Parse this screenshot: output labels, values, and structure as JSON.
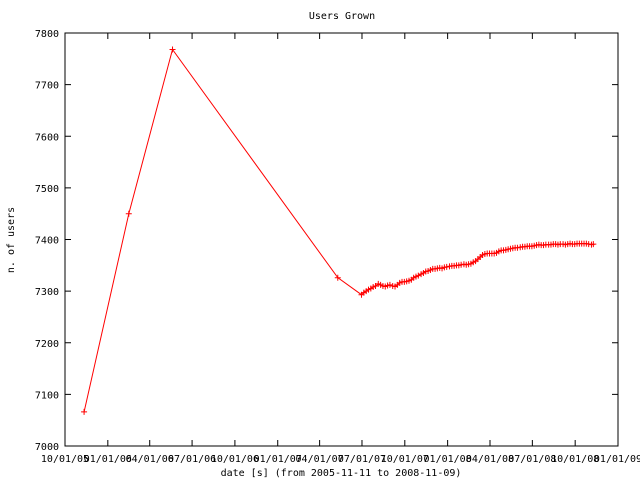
{
  "chart_data": {
    "type": "line",
    "title": "Users Grown",
    "xlabel": "date [s] (from 2005-11-11 to 2008-11-09)",
    "ylabel": "n. of users",
    "ylim": [
      7000,
      7800
    ],
    "y_ticks": [
      7000,
      7100,
      7200,
      7300,
      7400,
      7500,
      7600,
      7700,
      7800
    ],
    "x_tick_labels": [
      "10/01/05",
      "01/01/06",
      "04/01/06",
      "07/01/06",
      "10/01/06",
      "01/01/07",
      "04/01/07",
      "07/01/07",
      "10/01/07",
      "01/01/08",
      "04/01/08",
      "07/01/08",
      "10/01/08",
      "01/01/09"
    ],
    "grid": false,
    "legend": "none",
    "line_color": "#ff0000",
    "series": [
      {
        "name": "",
        "x": [
          "2005-11-11",
          "2006-02-15",
          "2006-05-20",
          "2007-05-10",
          "2007-06-30",
          "2007-07-05",
          "2007-07-10",
          "2007-07-15",
          "2007-07-20",
          "2007-07-25",
          "2007-07-30",
          "2007-08-05",
          "2007-08-10",
          "2007-08-15",
          "2007-08-20",
          "2007-08-25",
          "2007-08-30",
          "2007-09-05",
          "2007-09-10",
          "2007-09-15",
          "2007-09-20",
          "2007-09-25",
          "2007-09-30",
          "2007-10-05",
          "2007-10-10",
          "2007-10-15",
          "2007-10-20",
          "2007-10-25",
          "2007-10-30",
          "2007-11-05",
          "2007-11-10",
          "2007-11-15",
          "2007-11-20",
          "2007-11-25",
          "2007-11-30",
          "2007-12-05",
          "2007-12-10",
          "2007-12-15",
          "2007-12-20",
          "2007-12-25",
          "2007-12-30",
          "2008-01-05",
          "2008-01-10",
          "2008-01-15",
          "2008-01-20",
          "2008-01-25",
          "2008-01-30",
          "2008-02-05",
          "2008-02-10",
          "2008-02-15",
          "2008-02-20",
          "2008-02-25",
          "2008-03-01",
          "2008-03-06",
          "2008-03-11",
          "2008-03-16",
          "2008-03-21",
          "2008-03-26",
          "2008-03-31",
          "2008-04-05",
          "2008-04-10",
          "2008-04-15",
          "2008-04-20",
          "2008-04-25",
          "2008-04-30",
          "2008-05-05",
          "2008-05-10",
          "2008-05-15",
          "2008-05-20",
          "2008-05-25",
          "2008-05-30",
          "2008-06-05",
          "2008-06-10",
          "2008-06-15",
          "2008-06-20",
          "2008-06-25",
          "2008-06-30",
          "2008-07-05",
          "2008-07-10",
          "2008-07-15",
          "2008-07-20",
          "2008-07-25",
          "2008-07-30",
          "2008-08-05",
          "2008-08-10",
          "2008-08-15",
          "2008-08-20",
          "2008-08-25",
          "2008-08-30",
          "2008-09-05",
          "2008-09-10",
          "2008-09-15",
          "2008-09-20",
          "2008-09-25",
          "2008-09-30",
          "2008-10-05",
          "2008-10-10",
          "2008-10-15",
          "2008-10-20",
          "2008-10-25",
          "2008-10-30",
          "2008-11-05",
          "2008-11-09"
        ],
        "y": [
          7066,
          7450,
          7768,
          7326,
          7293,
          7297,
          7300,
          7303,
          7305,
          7308,
          7310,
          7314,
          7312,
          7310,
          7309,
          7311,
          7312,
          7310,
          7309,
          7312,
          7316,
          7318,
          7318,
          7319,
          7320,
          7322,
          7326,
          7328,
          7330,
          7333,
          7335,
          7338,
          7339,
          7341,
          7343,
          7343,
          7344,
          7345,
          7344,
          7346,
          7347,
          7348,
          7349,
          7349,
          7350,
          7350,
          7351,
          7352,
          7351,
          7352,
          7353,
          7356,
          7358,
          7362,
          7366,
          7370,
          7372,
          7373,
          7373,
          7373,
          7373,
          7374,
          7377,
          7379,
          7379,
          7380,
          7381,
          7382,
          7383,
          7384,
          7384,
          7385,
          7386,
          7386,
          7387,
          7387,
          7387,
          7388,
          7389,
          7390,
          7389,
          7389,
          7390,
          7390,
          7390,
          7391,
          7391,
          7390,
          7391,
          7391,
          7390,
          7391,
          7392,
          7391,
          7391,
          7392,
          7392,
          7392,
          7392,
          7392,
          7391,
          7390,
          7391
        ]
      }
    ]
  }
}
